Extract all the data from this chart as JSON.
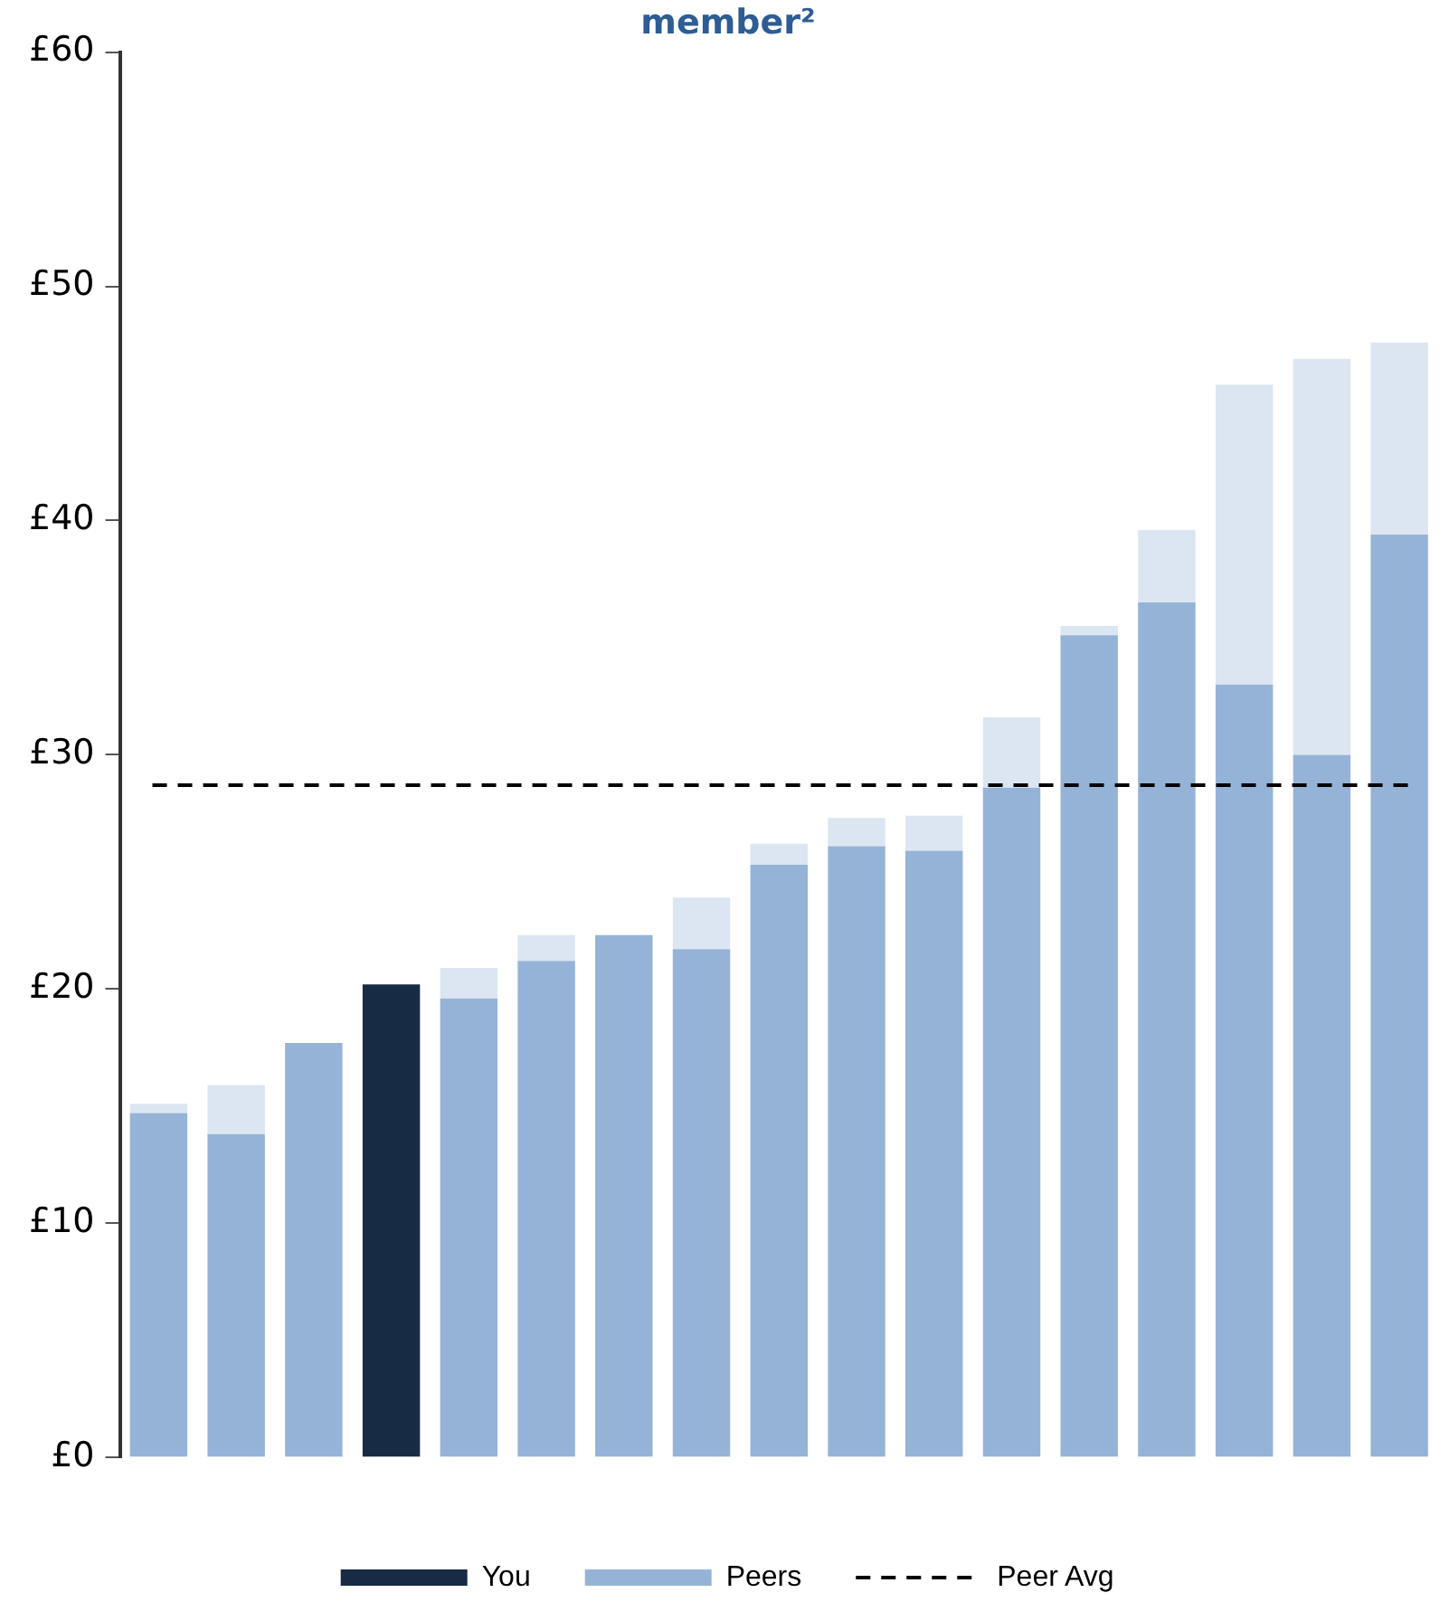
{
  "chart_data": {
    "type": "bar",
    "title": "member²",
    "stacked": true,
    "categories": [
      null,
      null,
      null,
      null,
      null,
      null,
      null,
      null,
      null,
      null,
      null,
      null,
      null,
      null,
      null,
      null,
      null
    ],
    "series": [
      {
        "name": "You",
        "color": "#172b45",
        "values": [
          null,
          null,
          null,
          20.2,
          null,
          null,
          null,
          null,
          null,
          null,
          null,
          null,
          null,
          null,
          null,
          null,
          null
        ]
      },
      {
        "name": "Peers",
        "color": "#95b3d7",
        "values": [
          14.7,
          13.8,
          17.7,
          null,
          19.6,
          21.2,
          22.3,
          21.7,
          25.3,
          26.1,
          25.9,
          28.6,
          35.1,
          36.5,
          33.0,
          30.0,
          39.4
        ]
      },
      {
        "color": "#dce6f2",
        "values": [
          0.4,
          2.1,
          null,
          null,
          1.3,
          1.1,
          null,
          2.2,
          0.9,
          1.2,
          1.5,
          3.0,
          0.4,
          3.1,
          12.8,
          16.9,
          8.2
        ]
      }
    ],
    "ylim": [
      0,
      60
    ],
    "yticks": [
      {
        "value": 0,
        "label": "£0"
      },
      {
        "value": 10,
        "label": "£10"
      },
      {
        "value": 20,
        "label": "£20"
      },
      {
        "value": 30,
        "label": "£30"
      },
      {
        "value": 40,
        "label": "£40"
      },
      {
        "value": 50,
        "label": "£50"
      },
      {
        "value": 60,
        "label": "£60"
      }
    ],
    "ref_lines": [
      {
        "axis": "y",
        "value": 28.7,
        "label": "Peer Avg",
        "color": "#000000",
        "line_style": "dashed"
      }
    ],
    "legend": "bottom",
    "grid": false
  }
}
